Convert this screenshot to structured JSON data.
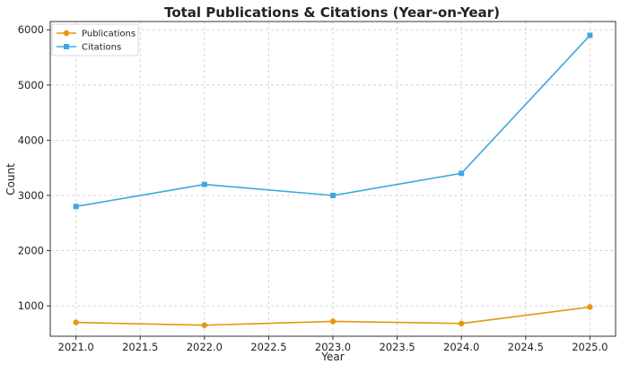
{
  "chart_data": {
    "type": "line",
    "title": "Total Publications & Citations (Year-on-Year)",
    "xlabel": "Year",
    "ylabel": "Count",
    "xlim": [
      2020.8,
      2025.2
    ],
    "ylim": [
      450,
      6150
    ],
    "xticks": [
      2021.0,
      2021.5,
      2022.0,
      2022.5,
      2023.0,
      2023.5,
      2024.0,
      2024.5,
      2025.0
    ],
    "xtick_labels": [
      "2021.0",
      "2021.5",
      "2022.0",
      "2022.5",
      "2023.0",
      "2023.5",
      "2024.0",
      "2024.5",
      "2025.0"
    ],
    "yticks": [
      1000,
      2000,
      3000,
      4000,
      5000,
      6000
    ],
    "ytick_labels": [
      "1000",
      "2000",
      "3000",
      "4000",
      "5000",
      "6000"
    ],
    "x": [
      2021,
      2022,
      2023,
      2024,
      2025
    ],
    "series": [
      {
        "name": "Publications",
        "values": [
          700,
          650,
          720,
          680,
          980
        ],
        "color": "#e6960f",
        "marker": "circle"
      },
      {
        "name": "Citations",
        "values": [
          2800,
          3200,
          3000,
          3400,
          5900
        ],
        "color": "#3ea8de",
        "marker": "square"
      }
    ],
    "grid": true,
    "legend": "top-left"
  }
}
